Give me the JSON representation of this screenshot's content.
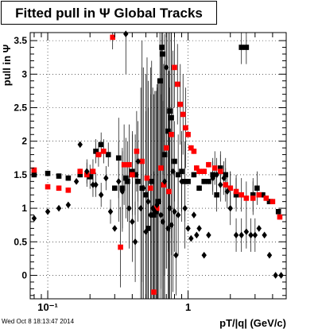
{
  "title": "Fitted pull in Ψ   Global Tracks",
  "footer_timestamp": "Wed Oct  8 18:13:47 2014",
  "chart_data": {
    "type": "scatter",
    "title": "Fitted pull in Ψ   Global Tracks",
    "xlabel": "pT/|q| (GeV/c)",
    "ylabel": "pull in Ψ",
    "x_scale": "log",
    "xlim": [
      0.075,
      5.0
    ],
    "ylim": [
      -0.35,
      3.62
    ],
    "grid": true,
    "x_tick_labels": [
      "10⁻¹",
      "1"
    ],
    "y_tick_labels": [
      "0",
      "0.5",
      "1",
      "1.5",
      "2",
      "2.5",
      "3",
      "3.5"
    ],
    "series": [
      {
        "marker": "square",
        "color": "#000000",
        "points": [
          [
            0.08,
            1.5
          ],
          [
            0.1,
            1.52
          ],
          [
            0.12,
            1.48
          ],
          [
            0.14,
            1.45
          ],
          [
            0.17,
            1.5
          ],
          [
            0.2,
            1.47
          ],
          [
            0.22,
            1.85
          ],
          [
            0.24,
            1.95
          ],
          [
            0.27,
            1.8
          ],
          [
            0.3,
            1.3
          ],
          [
            0.32,
            1.75
          ],
          [
            0.34,
            1.3
          ],
          [
            0.36,
            1.45
          ],
          [
            0.37,
            1.4
          ],
          [
            0.4,
            1.55
          ],
          [
            0.42,
            1.5
          ],
          [
            0.44,
            1.4
          ],
          [
            0.47,
            1.3
          ],
          [
            0.5,
            1.2
          ],
          [
            0.52,
            0.7
          ],
          [
            0.55,
            1.4
          ],
          [
            0.57,
            0.9
          ],
          [
            0.59,
            0.95
          ],
          [
            0.61,
            1.1
          ],
          [
            0.63,
            2.9
          ],
          [
            0.65,
            3.4
          ],
          [
            0.66,
            3.3
          ],
          [
            0.68,
            1.8
          ],
          [
            0.7,
            1.9
          ],
          [
            0.72,
            2.15
          ],
          [
            0.74,
            2.45
          ],
          [
            0.76,
            2.35
          ],
          [
            0.8,
            1.7
          ],
          [
            0.85,
            1.5
          ],
          [
            0.9,
            1.55
          ],
          [
            0.95,
            1.4
          ],
          [
            1.0,
            1.4
          ],
          [
            1.1,
            1.5
          ],
          [
            1.2,
            1.3
          ],
          [
            1.3,
            1.4
          ],
          [
            1.4,
            1.4
          ],
          [
            1.5,
            1.5
          ],
          [
            1.6,
            1.2
          ],
          [
            1.7,
            1.6
          ],
          [
            1.85,
            1.5
          ],
          [
            2.0,
            1.3
          ],
          [
            2.2,
            1.2
          ],
          [
            2.4,
            3.4
          ],
          [
            2.6,
            3.4
          ],
          [
            2.9,
            1.2
          ],
          [
            3.1,
            1.3
          ],
          [
            3.4,
            1.2
          ],
          [
            3.8,
            1.1
          ],
          [
            4.4,
            0.95
          ]
        ]
      },
      {
        "marker": "square",
        "color": "#ff0000",
        "points": [
          [
            0.08,
            1.57
          ],
          [
            0.1,
            1.32
          ],
          [
            0.12,
            1.3
          ],
          [
            0.14,
            1.27
          ],
          [
            0.17,
            1.55
          ],
          [
            0.19,
            1.5
          ],
          [
            0.21,
            1.55
          ],
          [
            0.23,
            1.8
          ],
          [
            0.25,
            1.85
          ],
          [
            0.29,
            3.55
          ],
          [
            0.33,
            0.42
          ],
          [
            0.35,
            1.65
          ],
          [
            0.38,
            1.65
          ],
          [
            0.4,
            1.5
          ],
          [
            0.43,
            1.85
          ],
          [
            0.47,
            1.7
          ],
          [
            0.51,
            1.45
          ],
          [
            0.54,
            1.3
          ],
          [
            0.57,
            -0.25
          ],
          [
            0.6,
            1.0
          ],
          [
            0.64,
            1.6
          ],
          [
            0.67,
            1.35
          ],
          [
            0.7,
            1.9
          ],
          [
            0.73,
            1.25
          ],
          [
            0.76,
            2.1
          ],
          [
            0.8,
            3.1
          ],
          [
            0.84,
            2.85
          ],
          [
            0.88,
            2.55
          ],
          [
            0.92,
            2.4
          ],
          [
            0.96,
            2.2
          ],
          [
            1.0,
            2.1
          ],
          [
            1.05,
            1.9
          ],
          [
            1.1,
            1.85
          ],
          [
            1.15,
            1.6
          ],
          [
            1.2,
            1.55
          ],
          [
            1.3,
            1.55
          ],
          [
            1.4,
            1.65
          ],
          [
            1.55,
            1.6
          ],
          [
            1.7,
            1.55
          ],
          [
            1.85,
            1.35
          ],
          [
            2.0,
            1.3
          ],
          [
            2.2,
            1.25
          ],
          [
            2.4,
            1.2
          ],
          [
            2.6,
            1.15
          ],
          [
            2.9,
            1.15
          ],
          [
            3.2,
            1.2
          ],
          [
            3.6,
            1.15
          ],
          [
            4.0,
            1.1
          ],
          [
            4.5,
            0.87
          ]
        ]
      },
      {
        "marker": "diamond",
        "color": "#000000",
        "points": [
          [
            0.08,
            0.85
          ],
          [
            0.1,
            0.95
          ],
          [
            0.12,
            1.0
          ],
          [
            0.14,
            1.05
          ],
          [
            0.16,
            1.4
          ],
          [
            0.17,
            1.95
          ],
          [
            0.19,
            1.55
          ],
          [
            0.21,
            1.35
          ],
          [
            0.22,
            1.35
          ],
          [
            0.24,
            1.2
          ],
          [
            0.26,
            1.45
          ],
          [
            0.28,
            0.95
          ],
          [
            0.3,
            0.7
          ],
          [
            0.32,
            1.4
          ],
          [
            0.34,
            1.25
          ],
          [
            0.36,
            3.6
          ],
          [
            0.38,
            1.0
          ],
          [
            0.4,
            0.8
          ],
          [
            0.42,
            0.5
          ],
          [
            0.44,
            1.7
          ],
          [
            0.46,
            1.0
          ],
          [
            0.48,
            1.3
          ],
          [
            0.5,
            0.65
          ],
          [
            0.52,
            1.1
          ],
          [
            0.54,
            0.9
          ],
          [
            0.56,
            1.0
          ],
          [
            0.58,
            0.95
          ],
          [
            0.6,
            1.05
          ],
          [
            0.62,
            1.1
          ],
          [
            0.64,
            0.9
          ],
          [
            0.66,
            0.8
          ],
          [
            0.68,
            1.4
          ],
          [
            0.7,
            3.1
          ],
          [
            0.72,
            0.7
          ],
          [
            0.74,
            1.0
          ],
          [
            0.76,
            0.75
          ],
          [
            0.78,
            1.55
          ],
          [
            0.8,
            0.95
          ],
          [
            0.82,
            0.3
          ],
          [
            0.85,
            0.9
          ],
          [
            0.9,
            1.4
          ],
          [
            0.95,
            1.0
          ],
          [
            1.0,
            0.7
          ],
          [
            1.05,
            0.55
          ],
          [
            1.1,
            0.9
          ],
          [
            1.15,
            0.6
          ],
          [
            1.2,
            0.7
          ],
          [
            1.3,
            0.3
          ],
          [
            1.4,
            0.6
          ],
          [
            1.5,
            1.45
          ],
          [
            1.6,
            1.5
          ],
          [
            1.7,
            1.35
          ],
          [
            1.8,
            1.45
          ],
          [
            1.9,
            1.25
          ],
          [
            2.0,
            1.0
          ],
          [
            2.2,
            0.6
          ],
          [
            2.4,
            0.6
          ],
          [
            2.6,
            0.65
          ],
          [
            2.8,
            0.6
          ],
          [
            3.0,
            0.6
          ],
          [
            3.2,
            0.7
          ],
          [
            3.5,
            0.6
          ],
          [
            3.8,
            0.3
          ],
          [
            4.2,
            0.0
          ],
          [
            4.6,
            0.0
          ]
        ]
      }
    ]
  }
}
